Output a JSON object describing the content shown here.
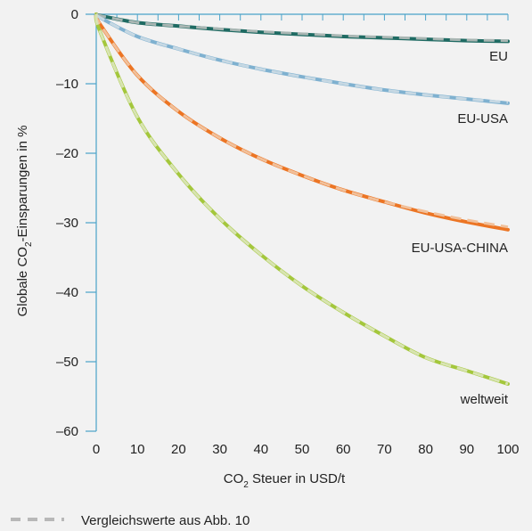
{
  "chart_data": {
    "type": "line",
    "xlabel": "CO2 Steuer in USD/t",
    "xlabel_main": "CO",
    "xlabel_sub": "2",
    "xlabel_rest": " Steuer in USD/t",
    "ylabel": "Globale CO2-Einsparungen in %",
    "ylabel_main": "Globale CO",
    "ylabel_sub": "2",
    "ylabel_rest": "-Einsparungen in %",
    "xlim": [
      0,
      100
    ],
    "ylim": [
      -60,
      0
    ],
    "x_ticks": [
      0,
      10,
      20,
      30,
      40,
      50,
      60,
      70,
      80,
      90,
      100
    ],
    "x_tick_labels": [
      "0",
      "10",
      "20",
      "30",
      "40",
      "50",
      "60",
      "70",
      "80",
      "90",
      "100"
    ],
    "y_ticks": [
      0,
      -10,
      -20,
      -30,
      -40,
      -50,
      -60
    ],
    "y_tick_labels": [
      "0",
      "–10",
      "–20",
      "–30",
      "–40",
      "–50",
      "–60"
    ],
    "grid": false,
    "x": [
      0,
      1,
      10,
      20,
      30,
      40,
      50,
      60,
      70,
      80,
      90,
      100
    ],
    "series": [
      {
        "name": "EU",
        "color": "#1f6b63",
        "values": [
          0,
          -0.2,
          -1.2,
          -1.7,
          -2.2,
          -2.6,
          -2.9,
          -3.2,
          -3.4,
          -3.6,
          -3.8,
          -3.9
        ]
      },
      {
        "name": "EU-USA",
        "color": "#7fb1d0",
        "values": [
          0,
          -0.5,
          -3.2,
          -5.0,
          -6.6,
          -7.9,
          -9.0,
          -10.0,
          -10.9,
          -11.6,
          -12.2,
          -12.8
        ]
      },
      {
        "name": "EU-USA-CHINA",
        "color": "#ec7524",
        "values": [
          0,
          -1.5,
          -8.8,
          -14.0,
          -17.8,
          -20.8,
          -23.2,
          -25.3,
          -27.0,
          -28.6,
          -29.9,
          -31.0
        ]
      },
      {
        "name": "weltweit",
        "color": "#a4c73c",
        "values": [
          0,
          -2.6,
          -14.8,
          -23.0,
          -29.4,
          -34.6,
          -39.1,
          -42.9,
          -46.3,
          -49.4,
          -51.3,
          -53.2
        ]
      }
    ],
    "comparison_series": [
      {
        "name": "EU",
        "color": "#a9b6b3",
        "values": [
          0,
          -0.2,
          -1.2,
          -1.7,
          -2.1,
          -2.5,
          -2.8,
          -3.1,
          -3.3,
          -3.5,
          -3.7,
          -3.8
        ]
      },
      {
        "name": "EU-USA",
        "color": "#c6d8e3",
        "values": [
          0,
          -0.5,
          -3.2,
          -5.0,
          -6.6,
          -7.9,
          -9.0,
          -10.0,
          -10.9,
          -11.6,
          -12.2,
          -12.7
        ]
      },
      {
        "name": "EU-USA-CHINA",
        "color": "#f1c09a",
        "values": [
          0,
          -1.5,
          -8.8,
          -14.0,
          -17.8,
          -20.8,
          -23.2,
          -25.3,
          -27.0,
          -28.4,
          -29.6,
          -30.6
        ]
      },
      {
        "name": "weltweit",
        "color": "#d8e4b2",
        "values": [
          0,
          -2.6,
          -14.8,
          -23.0,
          -29.4,
          -34.6,
          -39.1,
          -42.9,
          -46.3,
          -49.4,
          -51.3,
          -53.2
        ]
      }
    ],
    "legend": {
      "label": "Vergleichswerte aus Abb. 10",
      "placement": "bottom-left",
      "color": "#b8b8b8"
    },
    "axis_color": "#4aa3c9",
    "background": "#f2f2f2"
  }
}
